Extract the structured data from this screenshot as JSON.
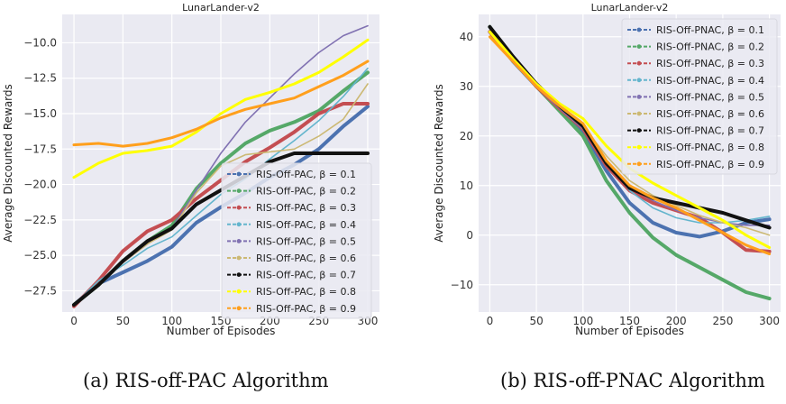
{
  "chart_data": [
    {
      "type": "line",
      "title": "LunarLander-v2",
      "xlabel": "Number of Episodes",
      "ylabel": "Average Discounted Rewards",
      "xlim": [
        -12,
        312
      ],
      "ylim": [
        -29,
        -8
      ],
      "xticks": [
        0,
        50,
        100,
        150,
        200,
        250,
        300
      ],
      "yticks": [
        -27.5,
        -25.0,
        -22.5,
        -20.0,
        -17.5,
        -15.0,
        -12.5,
        -10.0
      ],
      "grid": true,
      "legend_position": "lower-right",
      "series": [
        {
          "name": "RIS-Off-PAC, β = 0.1",
          "color": "#4c72b0",
          "x": [
            0,
            25,
            50,
            75,
            100,
            125,
            150,
            175,
            200,
            225,
            250,
            275,
            300
          ],
          "y": [
            -28.5,
            -27.0,
            -26.2,
            -25.4,
            -24.4,
            -22.7,
            -21.6,
            -20.6,
            -19.5,
            -18.6,
            -17.5,
            -15.9,
            -14.5
          ]
        },
        {
          "name": "RIS-Off-PAC, β = 0.2",
          "color": "#55a868",
          "x": [
            0,
            25,
            50,
            75,
            100,
            125,
            150,
            175,
            200,
            225,
            250,
            275,
            300
          ],
          "y": [
            -28.5,
            -27.1,
            -25.4,
            -24.0,
            -22.9,
            -20.3,
            -18.5,
            -17.1,
            -16.2,
            -15.6,
            -14.8,
            -13.4,
            -12.1
          ]
        },
        {
          "name": "RIS-Off-PAC, β = 0.3",
          "color": "#c44e52",
          "x": [
            0,
            25,
            50,
            75,
            100,
            125,
            150,
            175,
            200,
            225,
            250,
            275,
            300
          ],
          "y": [
            -28.6,
            -26.8,
            -24.7,
            -23.3,
            -22.5,
            -21.0,
            -19.7,
            -18.4,
            -17.4,
            -16.3,
            -15.0,
            -14.3,
            -14.3
          ]
        },
        {
          "name": "RIS-Off-PAC, β = 0.4",
          "color": "#64b5cd",
          "x": [
            0,
            25,
            50,
            75,
            100,
            125,
            150,
            175,
            200,
            225,
            250,
            275,
            300
          ],
          "y": [
            -28.5,
            -26.8,
            -25.7,
            -24.5,
            -23.7,
            -22.2,
            -20.7,
            -19.6,
            -18.2,
            -16.9,
            -15.5,
            -13.8,
            -11.8
          ]
        },
        {
          "name": "RIS-Off-PAC, β = 0.5",
          "color": "#8172b2",
          "x": [
            0,
            25,
            50,
            75,
            100,
            125,
            150,
            175,
            200,
            225,
            250,
            275,
            300
          ],
          "y": [
            -28.5,
            -27.0,
            -25.5,
            -24.2,
            -23.1,
            -20.4,
            -17.8,
            -15.6,
            -13.9,
            -12.2,
            -10.7,
            -9.5,
            -8.8
          ]
        },
        {
          "name": "RIS-Off-PAC, β = 0.6",
          "color": "#ccb974",
          "x": [
            0,
            25,
            50,
            75,
            100,
            125,
            150,
            175,
            200,
            225,
            250,
            275,
            300
          ],
          "y": [
            -28.5,
            -27.0,
            -25.5,
            -24.2,
            -23.2,
            -20.6,
            -18.7,
            -17.9,
            -17.7,
            -17.5,
            -16.6,
            -15.4,
            -12.9
          ]
        },
        {
          "name": "RIS-Off-PAC, β = 0.7",
          "color": "#111111",
          "x": [
            0,
            25,
            50,
            75,
            100,
            125,
            150,
            175,
            200,
            225,
            250,
            275,
            300
          ],
          "y": [
            -28.5,
            -27.1,
            -25.4,
            -24.0,
            -23.1,
            -21.4,
            -20.4,
            -19.4,
            -18.4,
            -17.8,
            -17.8,
            -17.8,
            -17.8
          ]
        },
        {
          "name": "RIS-Off-PAC, β = 0.8",
          "color": "#ffff00",
          "x": [
            0,
            25,
            50,
            75,
            100,
            125,
            150,
            175,
            200,
            225,
            250,
            275,
            300
          ],
          "y": [
            -19.5,
            -18.5,
            -17.8,
            -17.6,
            -17.3,
            -16.3,
            -15.0,
            -14.0,
            -13.5,
            -12.9,
            -12.1,
            -11.0,
            -9.8
          ]
        },
        {
          "name": "RIS-Off-PAC, β = 0.9",
          "color": "#ff9f1c",
          "x": [
            0,
            25,
            50,
            75,
            100,
            125,
            150,
            175,
            200,
            225,
            250,
            275,
            300
          ],
          "y": [
            -17.2,
            -17.1,
            -17.3,
            -17.1,
            -16.7,
            -16.1,
            -15.3,
            -14.7,
            -14.3,
            -13.9,
            -13.1,
            -12.3,
            -11.3
          ]
        }
      ]
    },
    {
      "type": "line",
      "title": "LunarLander-v2",
      "xlabel": "Number of Episodes",
      "ylabel": "Average Discounted Rewards",
      "xlim": [
        -12,
        312
      ],
      "ylim": [
        -15.5,
        44.5
      ],
      "xticks": [
        0,
        50,
        100,
        150,
        200,
        250,
        300
      ],
      "yticks": [
        -10,
        0,
        10,
        20,
        30,
        40
      ],
      "grid": true,
      "legend_position": "upper-right",
      "series": [
        {
          "name": "RIS-Off-PNAC, β = 0.1",
          "color": "#4c72b0",
          "x": [
            0,
            25,
            50,
            75,
            100,
            125,
            150,
            175,
            200,
            225,
            250,
            275,
            300
          ],
          "y": [
            41,
            35,
            30,
            25.5,
            21,
            13,
            6.5,
            2.5,
            0.5,
            -0.3,
            0.8,
            2.5,
            3.2
          ]
        },
        {
          "name": "RIS-Off-PNAC, β = 0.2",
          "color": "#55a868",
          "x": [
            0,
            25,
            50,
            75,
            100,
            125,
            150,
            175,
            200,
            225,
            250,
            275,
            300
          ],
          "y": [
            42,
            35.5,
            30,
            25,
            20,
            11,
            4.5,
            -0.5,
            -4,
            -6.5,
            -9,
            -11.5,
            -12.8
          ]
        },
        {
          "name": "RIS-Off-PNAC, β = 0.3",
          "color": "#c44e52",
          "x": [
            0,
            25,
            50,
            75,
            100,
            125,
            150,
            175,
            200,
            225,
            250,
            275,
            300
          ],
          "y": [
            41,
            35.5,
            30,
            25.5,
            21.5,
            14,
            9,
            6.5,
            5,
            3.5,
            0.5,
            -3,
            -3.3
          ]
        },
        {
          "name": "RIS-Off-PNAC, β = 0.4",
          "color": "#64b5cd",
          "x": [
            0,
            25,
            50,
            75,
            100,
            125,
            150,
            175,
            200,
            225,
            250,
            275,
            300
          ],
          "y": [
            41,
            35.5,
            30,
            25.5,
            21.5,
            15,
            9,
            5.5,
            3.5,
            2.5,
            2.5,
            3,
            3.8
          ]
        },
        {
          "name": "RIS-Off-PNAC, β = 0.5",
          "color": "#8172b2",
          "x": [
            0,
            25,
            50,
            75,
            100,
            125,
            150,
            175,
            200,
            225,
            250,
            275,
            300
          ],
          "y": [
            41,
            35.5,
            30,
            25.5,
            21.5,
            15,
            10,
            7,
            5,
            3.5,
            2.5,
            2,
            2
          ]
        },
        {
          "name": "RIS-Off-PNAC, β = 0.6",
          "color": "#ccb974",
          "x": [
            0,
            25,
            50,
            75,
            100,
            125,
            150,
            175,
            200,
            225,
            250,
            275,
            300
          ],
          "y": [
            41,
            35.5,
            30,
            26,
            22,
            16,
            11,
            8,
            6,
            4,
            2.5,
            1.5,
            0
          ]
        },
        {
          "name": "RIS-Off-PNAC, β = 0.7",
          "color": "#111111",
          "x": [
            0,
            25,
            50,
            75,
            100,
            125,
            150,
            175,
            200,
            225,
            250,
            275,
            300
          ],
          "y": [
            42,
            36,
            30.5,
            26,
            22,
            14.5,
            9.5,
            7.5,
            6.5,
            5.5,
            4.5,
            3,
            1.5
          ]
        },
        {
          "name": "RIS-Off-PNAC, β = 0.8",
          "color": "#ffff00",
          "x": [
            0,
            25,
            50,
            75,
            100,
            125,
            150,
            175,
            200,
            225,
            250,
            275,
            300
          ],
          "y": [
            41,
            35.5,
            30.5,
            26.5,
            23.5,
            18,
            13.5,
            10.5,
            8,
            5.5,
            3,
            0,
            -2.5
          ]
        },
        {
          "name": "RIS-Off-PNAC, β = 0.9",
          "color": "#ff9f1c",
          "x": [
            0,
            25,
            50,
            75,
            100,
            125,
            150,
            175,
            200,
            225,
            250,
            275,
            300
          ],
          "y": [
            40,
            35,
            30,
            26,
            22.5,
            15,
            10,
            7.5,
            5.5,
            3,
            0.5,
            -2,
            -3.8
          ]
        }
      ]
    }
  ],
  "captions": [
    "(a) RIS-off-PAC Algorithm",
    "(b) RIS-off-PNAC Algorithm"
  ]
}
